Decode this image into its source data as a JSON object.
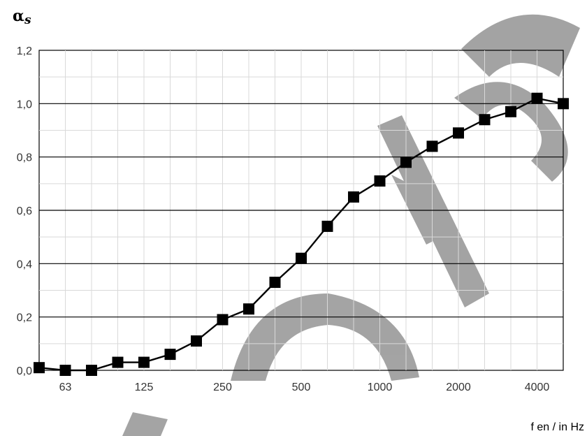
{
  "chart_data": {
    "type": "line",
    "title": "",
    "ylabel_main": "α",
    "ylabel_sub": "s",
    "xlabel": "f en / in Hz",
    "x_ticks": [
      "63",
      "125",
      "250",
      "500",
      "1000",
      "2000",
      "4000"
    ],
    "x": [
      "50",
      "63",
      "80",
      "100",
      "125",
      "160",
      "200",
      "250",
      "315",
      "400",
      "500",
      "630",
      "800",
      "1000",
      "1250",
      "1600",
      "2000",
      "2500",
      "3150",
      "4000",
      "5000"
    ],
    "y_ticks": [
      "0,0",
      "0,2",
      "0,4",
      "0,6",
      "0,8",
      "1,0",
      "1,2"
    ],
    "ylim": [
      0,
      1.2
    ],
    "grid": true,
    "series": [
      {
        "values": [
          0.01,
          0.0,
          0.0,
          0.03,
          0.03,
          0.06,
          0.11,
          0.19,
          0.23,
          0.33,
          0.42,
          0.54,
          0.65,
          0.71,
          0.78,
          0.84,
          0.89,
          0.94,
          0.97,
          1.02,
          1.0
        ]
      }
    ],
    "colors": {
      "line": "#000000",
      "marker": "#000000",
      "grid": "#d9d9d9",
      "gridMajor": "#000000",
      "watermark": "#9a9a9a"
    }
  }
}
